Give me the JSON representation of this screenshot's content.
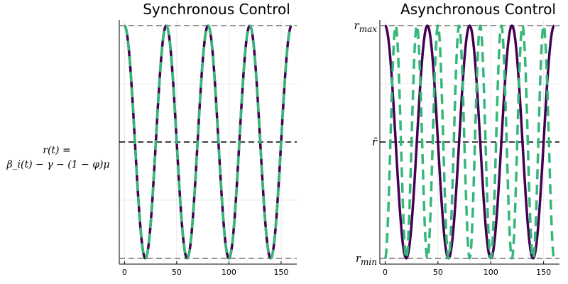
{
  "ylabel_lines": [
    "r(t) =",
    "β_i(t) − γ − (1 − φ)μ"
  ],
  "chart_data": [
    {
      "type": "line",
      "title": "Synchronous Control",
      "xlim": [
        -5,
        165
      ],
      "xticks": [
        0,
        50,
        100,
        150
      ],
      "ylim": [
        -1.05,
        1.05
      ],
      "yticks": [],
      "ytick_labels": [],
      "grid": true,
      "legend": "none",
      "reference_lines": [
        {
          "y": 1,
          "color": "#777777",
          "style": "dash"
        },
        {
          "y": 0,
          "color": "#000000",
          "style": "dash"
        },
        {
          "y": -1,
          "color": "#777777",
          "style": "dash"
        }
      ],
      "x_range": [
        0,
        160
      ],
      "series": [
        {
          "kind": "cos",
          "amplitude": 1,
          "period": 40,
          "phase_shift": 0,
          "color": "#440154",
          "style": "solid"
        },
        {
          "kind": "cos",
          "amplitude": 1,
          "period": 40,
          "phase_shift": 0,
          "color": "#35b779",
          "style": "dash"
        }
      ]
    },
    {
      "type": "line",
      "title": "Asynchronous Control",
      "xlim": [
        -5,
        165
      ],
      "xticks": [
        0,
        50,
        100,
        150
      ],
      "ylim": [
        -1.05,
        1.05
      ],
      "yticks": [
        1,
        0,
        -1
      ],
      "ytick_labels": [
        "r_max",
        "r̄",
        "r_min"
      ],
      "grid": true,
      "legend": "none",
      "reference_lines": [
        {
          "y": 1,
          "color": "#777777",
          "style": "dash"
        },
        {
          "y": 0,
          "color": "#000000",
          "style": "dash"
        },
        {
          "y": -1,
          "color": "#777777",
          "style": "dash"
        }
      ],
      "x_range": [
        0,
        160
      ],
      "series": [
        {
          "kind": "cos",
          "amplitude": 1,
          "period": 40,
          "phase_shift": 0,
          "color": "#440154",
          "style": "solid"
        },
        {
          "kind": "cos",
          "amplitude": 1,
          "period": 20,
          "phase_shift": 10,
          "color": "#35b779",
          "style": "dash"
        }
      ]
    }
  ]
}
